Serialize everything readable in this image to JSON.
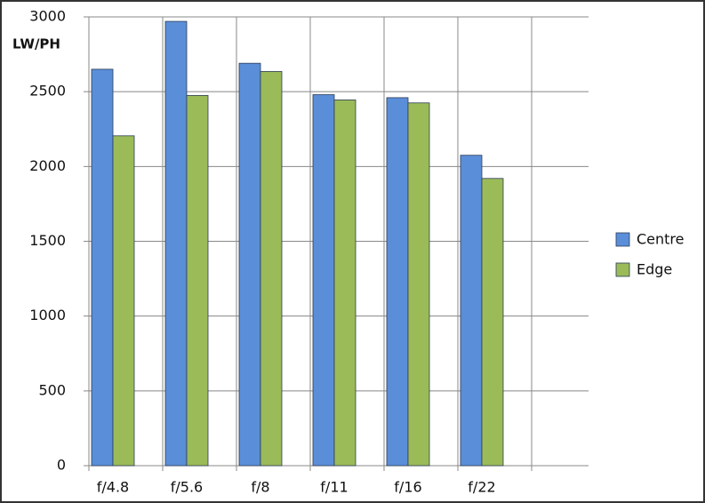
{
  "chart_data": {
    "type": "bar",
    "y_label": "LW/PH",
    "categories": [
      "f/4.8",
      "f/5.6",
      "f/8",
      "f/11",
      "f/16",
      "f/22"
    ],
    "series": [
      {
        "name": "Centre",
        "color": "#5b8ed8",
        "values": [
          2650,
          2970,
          2690,
          2480,
          2460,
          2075
        ]
      },
      {
        "name": "Edge",
        "color": "#9bbb59",
        "values": [
          2205,
          2475,
          2635,
          2445,
          2425,
          1920
        ]
      }
    ],
    "ylim": [
      0,
      3000
    ],
    "yticks": [
      0,
      500,
      1000,
      1500,
      2000,
      2500,
      3000
    ],
    "grid": true,
    "legend": "right"
  }
}
